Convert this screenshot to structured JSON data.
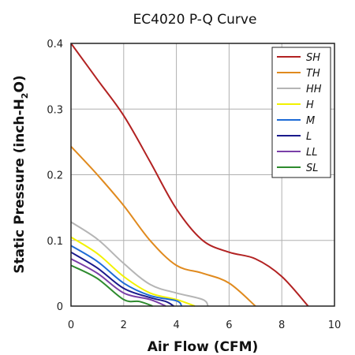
{
  "chart_data": {
    "type": "line",
    "title": "EC4020 P-Q Curve",
    "xlabel": "Air Flow (CFM)",
    "ylabel_prefix": "Static Pressure (inch-H",
    "ylabel_sub": "2",
    "ylabel_suffix": "O)",
    "xlim": [
      0,
      10
    ],
    "ylim": [
      0,
      0.4
    ],
    "x_ticks": [
      0,
      2,
      4,
      6,
      8,
      10
    ],
    "x_tick_labels": [
      "0",
      "2",
      "4",
      "6",
      "8",
      "10"
    ],
    "y_ticks": [
      0,
      0.1,
      0.2,
      0.3,
      0.4
    ],
    "y_tick_labels": [
      "0",
      "0.1",
      "0.2",
      "0.3",
      "0.4"
    ],
    "grid": true,
    "legend_position": "top-right",
    "series": [
      {
        "name": "SH",
        "color": "#b22222",
        "points": [
          [
            0,
            0.4
          ],
          [
            1,
            0.345
          ],
          [
            2,
            0.29
          ],
          [
            3,
            0.22
          ],
          [
            4,
            0.148
          ],
          [
            5,
            0.1
          ],
          [
            6,
            0.082
          ],
          [
            7,
            0.072
          ],
          [
            8,
            0.045
          ],
          [
            9,
            0
          ]
        ]
      },
      {
        "name": "TH",
        "color": "#e08a1e",
        "points": [
          [
            0,
            0.243
          ],
          [
            1,
            0.2
          ],
          [
            2,
            0.153
          ],
          [
            3,
            0.1
          ],
          [
            4,
            0.062
          ],
          [
            5,
            0.05
          ],
          [
            6,
            0.035
          ],
          [
            7,
            0
          ]
        ]
      },
      {
        "name": "HH",
        "color": "#b5b5b5",
        "points": [
          [
            0,
            0.128
          ],
          [
            1,
            0.102
          ],
          [
            2,
            0.065
          ],
          [
            3,
            0.033
          ],
          [
            4,
            0.02
          ],
          [
            5,
            0.01
          ],
          [
            5.2,
            0
          ]
        ]
      },
      {
        "name": "H",
        "color": "#f2f200",
        "points": [
          [
            0,
            0.105
          ],
          [
            1,
            0.08
          ],
          [
            2,
            0.045
          ],
          [
            3,
            0.02
          ],
          [
            4,
            0.01
          ],
          [
            4.7,
            0
          ]
        ]
      },
      {
        "name": "M",
        "color": "#1e6bd6",
        "points": [
          [
            0,
            0.092
          ],
          [
            1,
            0.068
          ],
          [
            2,
            0.035
          ],
          [
            3,
            0.016
          ],
          [
            4,
            0.008
          ],
          [
            4.2,
            0
          ]
        ]
      },
      {
        "name": "L",
        "color": "#1a1a8c",
        "points": [
          [
            0,
            0.082
          ],
          [
            1,
            0.058
          ],
          [
            2,
            0.027
          ],
          [
            3,
            0.013
          ],
          [
            3.6,
            0.007
          ],
          [
            3.9,
            0
          ]
        ]
      },
      {
        "name": "LL",
        "color": "#7a3fa8",
        "points": [
          [
            0,
            0.072
          ],
          [
            1,
            0.05
          ],
          [
            2,
            0.02
          ],
          [
            3,
            0.01
          ],
          [
            3.6,
            0
          ]
        ]
      },
      {
        "name": "SL",
        "color": "#2e8b2e",
        "points": [
          [
            0,
            0.062
          ],
          [
            1,
            0.042
          ],
          [
            2,
            0.01
          ],
          [
            2.6,
            0.007
          ],
          [
            3.1,
            0
          ]
        ]
      }
    ]
  }
}
